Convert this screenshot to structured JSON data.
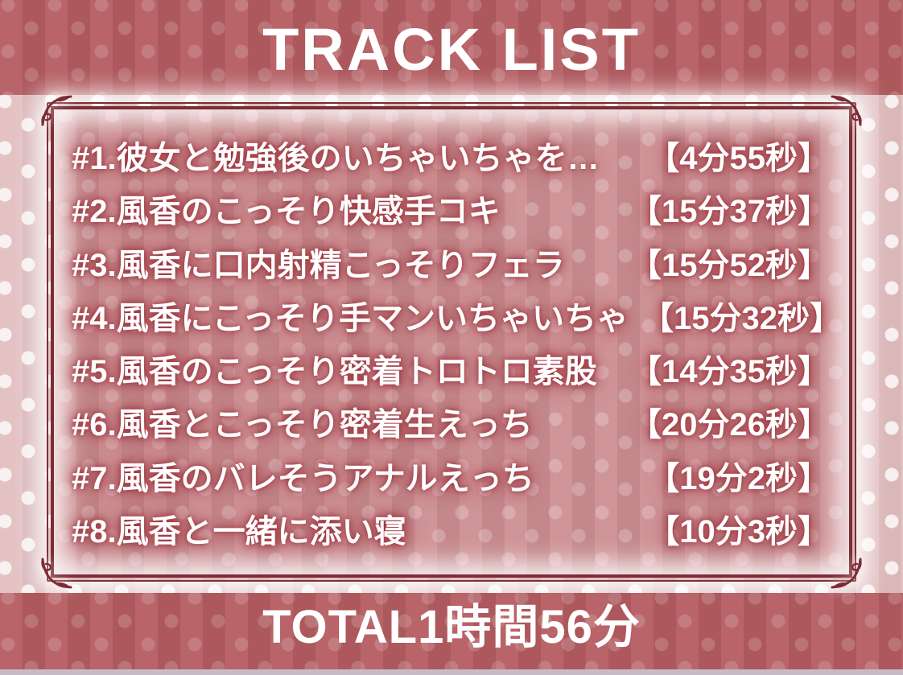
{
  "header": {
    "title": "TRACK LIST"
  },
  "tracks": [
    {
      "title": "#1.彼女と勉強後のいちゃいちゃを…",
      "duration": "【4分55秒】"
    },
    {
      "title": "#2.風香のこっそり快感手コキ",
      "duration": "【15分37秒】"
    },
    {
      "title": "#3.風香に口内射精こっそりフェラ",
      "duration": "【15分52秒】"
    },
    {
      "title": "#4.風香にこっそり手マンいちゃいちゃ",
      "duration": "【15分32秒】"
    },
    {
      "title": "#5.風香のこっそり密着トロトロ素股",
      "duration": "【14分35秒】"
    },
    {
      "title": "#6.風香とこっそり密着生えっち",
      "duration": "【20分26秒】"
    },
    {
      "title": "#7.風香のバレそうアナルえっち",
      "duration": "【19分2秒】"
    },
    {
      "title": "#8.風香と一緒に添い寝",
      "duration": "【10分3秒】"
    }
  ],
  "footer": {
    "total": "TOTAL1時間56分"
  },
  "colors": {
    "band": "#b45c60",
    "margin": "#e2bec0",
    "panel": "#cc8e92",
    "frame_border": "#7c2d34",
    "text": "#ffffff",
    "text_glow": "#9e343e"
  }
}
